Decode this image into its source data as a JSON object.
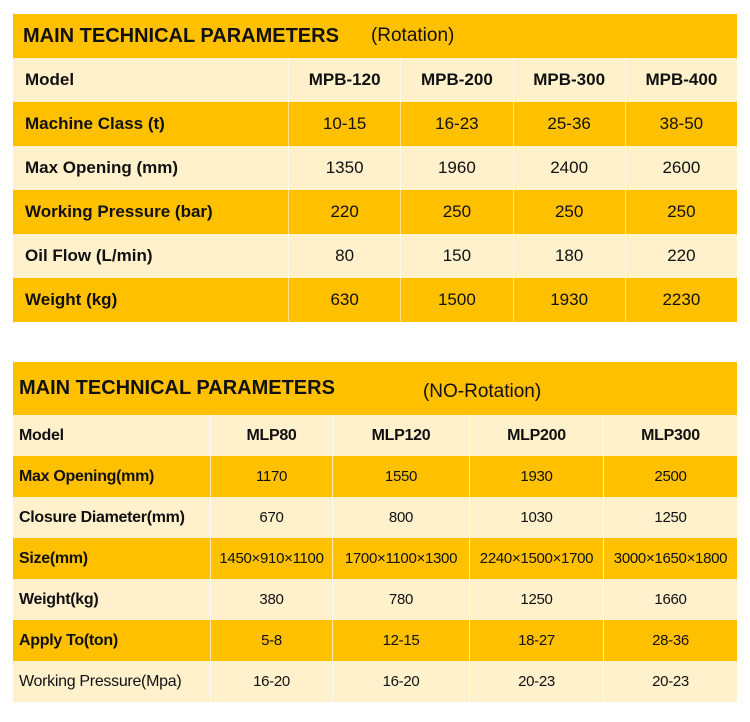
{
  "rotation": {
    "title": "MAIN TECHNICAL PARAMETERS",
    "subtitle": "(Rotation)",
    "header": {
      "label": "Model",
      "cols": [
        "MPB-120",
        "MPB-200",
        "MPB-300",
        "MPB-400"
      ]
    },
    "rows": [
      {
        "label": "Machine Class (t)",
        "values": [
          "10-15",
          "16-23",
          "25-36",
          "38-50"
        ]
      },
      {
        "label": "Max Opening (mm)",
        "values": [
          "1350",
          "1960",
          "2400",
          "2600"
        ]
      },
      {
        "label": "Working Pressure (bar)",
        "values": [
          "220",
          "250",
          "250",
          "250"
        ]
      },
      {
        "label": "Oil Flow (L/min)",
        "values": [
          "80",
          "150",
          "180",
          "220"
        ]
      },
      {
        "label": "Weight (kg)",
        "values": [
          "630",
          "1500",
          "1930",
          "2230"
        ]
      }
    ]
  },
  "no_rotation": {
    "title": "MAIN TECHNICAL PARAMETERS",
    "subtitle": "(NO-Rotation)",
    "header": {
      "label": "Model",
      "cols": [
        "MLP80",
        "MLP120",
        "MLP200",
        "MLP300"
      ]
    },
    "rows": [
      {
        "label": "Max Opening(mm)",
        "values": [
          "1170",
          "1550",
          "1930",
          "2500"
        ]
      },
      {
        "label": "Closure Diameter(mm)",
        "values": [
          "670",
          "800",
          "1030",
          "1250"
        ]
      },
      {
        "label": "Size(mm)",
        "values": [
          "1450×910×1100",
          "1700×1100×1300",
          "2240×1500×1700",
          "3000×1650×1800"
        ]
      },
      {
        "label": "Weight(kg)",
        "values": [
          "380",
          "780",
          "1250",
          "1660"
        ]
      },
      {
        "label": "Apply To(ton)",
        "values": [
          "5-8",
          "12-15",
          "18-27",
          "28-36"
        ]
      },
      {
        "label": "Working Pressure(Mpa)",
        "values": [
          "16-20",
          "16-20",
          "20-23",
          "20-23"
        ]
      }
    ]
  }
}
